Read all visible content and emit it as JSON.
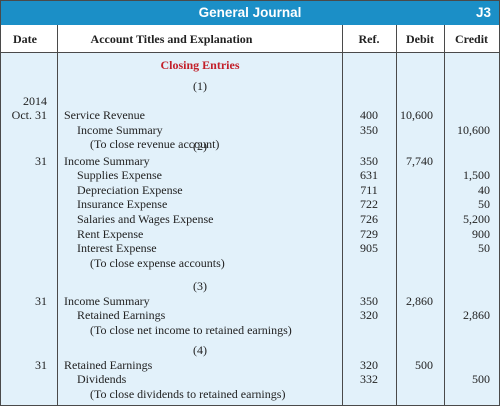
{
  "journal": {
    "title": "General Journal",
    "ref": "J3"
  },
  "columns": {
    "date": "Date",
    "account": "Account Titles and Explanation",
    "ref": "Ref.",
    "debit": "Debit",
    "credit": "Credit"
  },
  "section_title": "Closing Entries",
  "entries": [
    {
      "number": "(1)",
      "year": "2014",
      "date": "Oct. 31",
      "lines": [
        {
          "account": "Service Revenue",
          "indent": 0,
          "ref": "400",
          "debit": "10,600",
          "credit": ""
        },
        {
          "account": "Income Summary",
          "indent": 1,
          "ref": "350",
          "debit": "",
          "credit": "10,600"
        },
        {
          "account": "(To close revenue account)",
          "indent": 2,
          "ref": "",
          "debit": "",
          "credit": ""
        }
      ]
    },
    {
      "number": "(2)",
      "date": "31",
      "lines": [
        {
          "account": "Income Summary",
          "indent": 0,
          "ref": "350",
          "debit": "7,740",
          "credit": ""
        },
        {
          "account": "Supplies Expense",
          "indent": 1,
          "ref": "631",
          "debit": "",
          "credit": "1,500"
        },
        {
          "account": "Depreciation Expense",
          "indent": 1,
          "ref": "711",
          "debit": "",
          "credit": "40"
        },
        {
          "account": "Insurance Expense",
          "indent": 1,
          "ref": "722",
          "debit": "",
          "credit": "50"
        },
        {
          "account": "Salaries and Wages Expense",
          "indent": 1,
          "ref": "726",
          "debit": "",
          "credit": "5,200"
        },
        {
          "account": "Rent Expense",
          "indent": 1,
          "ref": "729",
          "debit": "",
          "credit": "900"
        },
        {
          "account": "Interest Expense",
          "indent": 1,
          "ref": "905",
          "debit": "",
          "credit": "50"
        },
        {
          "account": "(To close expense accounts)",
          "indent": 2,
          "ref": "",
          "debit": "",
          "credit": ""
        }
      ]
    },
    {
      "number": "(3)",
      "date": "31",
      "lines": [
        {
          "account": "Income Summary",
          "indent": 0,
          "ref": "350",
          "debit": "2,860",
          "credit": ""
        },
        {
          "account": "Retained Earnings",
          "indent": 1,
          "ref": "320",
          "debit": "",
          "credit": "2,860"
        },
        {
          "account": "(To close net income to retained earnings)",
          "indent": 2,
          "ref": "",
          "debit": "",
          "credit": ""
        }
      ]
    },
    {
      "number": "(4)",
      "date": "31",
      "lines": [
        {
          "account": "Retained Earnings",
          "indent": 0,
          "ref": "320",
          "debit": "500",
          "credit": ""
        },
        {
          "account": "Dividends",
          "indent": 1,
          "ref": "332",
          "debit": "",
          "credit": "500"
        },
        {
          "account": "(To close dividends to retained earnings)",
          "indent": 2,
          "ref": "",
          "debit": "",
          "credit": ""
        }
      ]
    }
  ]
}
